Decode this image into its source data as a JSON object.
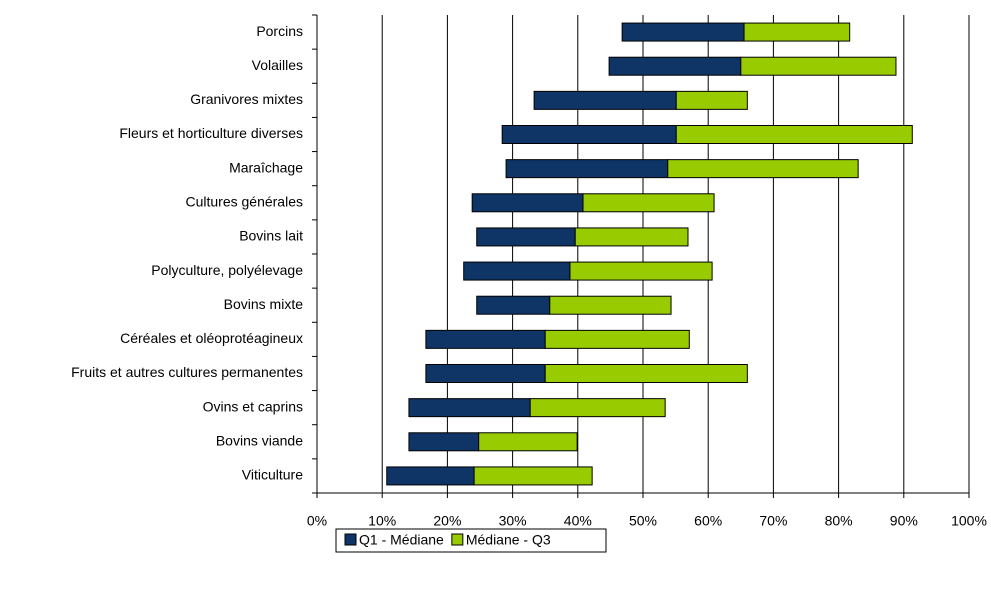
{
  "chart_data": {
    "type": "floating-bar",
    "categories": [
      "Porcins",
      "Volailles",
      "Granivores mixtes",
      "Fleurs et horticulture diverses",
      "Maraîchage",
      "Cultures générales",
      "Bovins lait",
      "Polyculture, polyélevage",
      "Bovins mixte",
      "Céréales et oléoprotéagineux",
      "Fruits et autres cultures permanentes",
      "Ovins et caprins",
      "Bovins viande",
      "Viticulture"
    ],
    "series": [
      {
        "name": "Q1 - Médiane",
        "color": "#0f3566",
        "values": [
          [
            46.8,
            65.5
          ],
          [
            44.8,
            65.0
          ],
          [
            33.3,
            55.1
          ],
          [
            28.4,
            55.1
          ],
          [
            29.0,
            53.8
          ],
          [
            23.8,
            40.8
          ],
          [
            24.5,
            39.6
          ],
          [
            22.5,
            38.8
          ],
          [
            24.5,
            35.7
          ],
          [
            16.7,
            35.0
          ],
          [
            16.7,
            35.0
          ],
          [
            14.1,
            32.7
          ],
          [
            14.1,
            24.8
          ],
          [
            10.7,
            24.1
          ]
        ]
      },
      {
        "name": "Médiane - Q3",
        "color": "#99cc00",
        "values": [
          [
            65.5,
            81.7
          ],
          [
            65.0,
            88.8
          ],
          [
            55.1,
            66.0
          ],
          [
            55.1,
            91.3
          ],
          [
            53.8,
            83.0
          ],
          [
            40.8,
            60.9
          ],
          [
            39.6,
            56.9
          ],
          [
            38.8,
            60.6
          ],
          [
            35.7,
            54.3
          ],
          [
            35.0,
            57.1
          ],
          [
            35.0,
            66.0
          ],
          [
            32.7,
            53.4
          ],
          [
            24.8,
            39.9
          ],
          [
            24.1,
            42.2
          ]
        ]
      }
    ],
    "xlim": [
      0,
      100
    ],
    "xticks": [
      {
        "value": 0,
        "label": "0%"
      },
      {
        "value": 10,
        "label": "10%"
      },
      {
        "value": 20,
        "label": "20%"
      },
      {
        "value": 30,
        "label": "30%"
      },
      {
        "value": 40,
        "label": "40%"
      },
      {
        "value": 50,
        "label": "50%"
      },
      {
        "value": 60,
        "label": "60%"
      },
      {
        "value": 70,
        "label": "70%"
      },
      {
        "value": 80,
        "label": "80%"
      },
      {
        "value": 90,
        "label": "90%"
      },
      {
        "value": 100,
        "label": "100%"
      }
    ],
    "grid": true,
    "legend": "bottom"
  }
}
